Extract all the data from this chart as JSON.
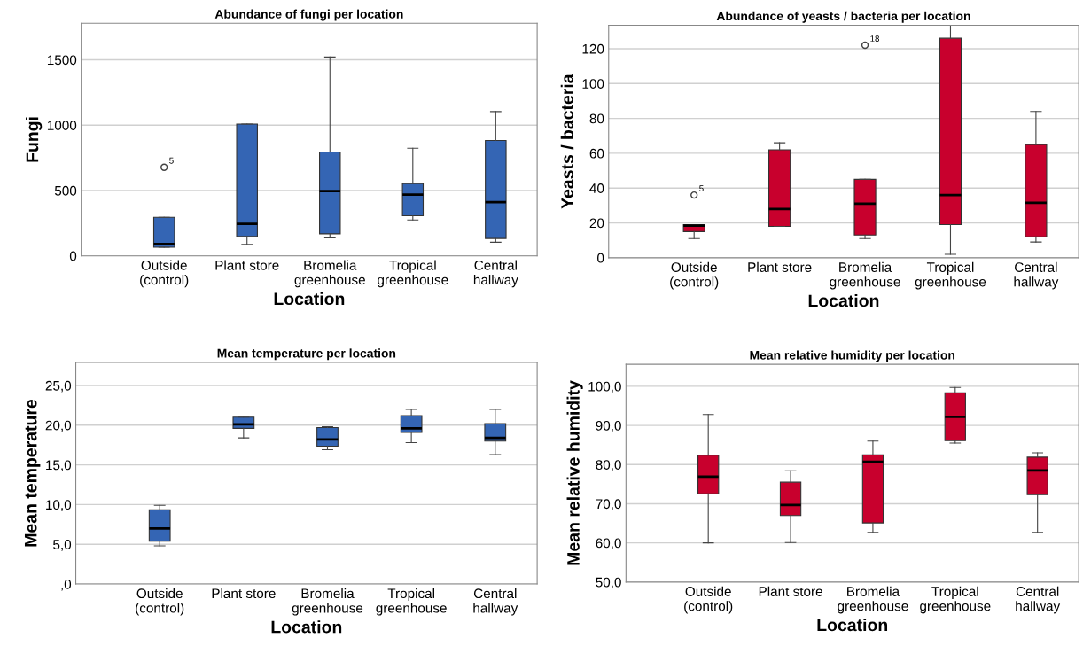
{
  "chart_data": [
    {
      "type": "box",
      "title": "Abundance of fungi per location",
      "xlabel": "Location",
      "ylabel": "Fungi",
      "categories": [
        "Outside\n(control)",
        "Plant store",
        "Bromelia\ngreenhouse",
        "Tropical\ngreenhouse",
        "Central\nhallway"
      ],
      "ylim": [
        0,
        1780
      ],
      "yticks": [
        0,
        500,
        1000,
        1500
      ],
      "grid": "y",
      "series": [
        {
          "color": "#3465b4",
          "boxes": [
            {
              "low": 66,
              "q1": 66,
              "median": 90,
              "q3": 295,
              "high": 295,
              "outliers": [
                678
              ]
            },
            {
              "low": 88,
              "q1": 149,
              "median": 245,
              "q3": 1008,
              "high": 1008
            },
            {
              "low": 138,
              "q1": 168,
              "median": 495,
              "q3": 795,
              "high": 1521
            },
            {
              "low": 274,
              "q1": 306,
              "median": 468,
              "q3": 553,
              "high": 824
            },
            {
              "low": 104,
              "q1": 133,
              "median": 410,
              "q3": 883,
              "high": 1104
            }
          ]
        }
      ],
      "annotations": [
        "5"
      ]
    },
    {
      "type": "box",
      "title": "Abundance of yeasts / bacteria per location",
      "xlabel": "Location",
      "ylabel": "Yeasts / bacteria",
      "categories": [
        "Outside\n(control)",
        "Plant store",
        "Bromelia\ngreenhouse",
        "Tropical\ngreenhouse",
        "Central\nhallway"
      ],
      "ylim": [
        0,
        133.5
      ],
      "yticks": [
        0,
        20,
        40,
        60,
        80,
        100,
        120
      ],
      "grid": "y",
      "series": [
        {
          "color": "#c8002d",
          "boxes": [
            {
              "low": 11,
              "q1": 15,
              "median": 18.4,
              "q3": 19,
              "high": 19,
              "outliers": [
                36
              ]
            },
            {
              "low": 18,
              "q1": 18,
              "median": 28,
              "q3": 62,
              "high": 66
            },
            {
              "low": 11,
              "q1": 13,
              "median": 31,
              "q3": 45,
              "high": 45,
              "outliers": [
                122
              ]
            },
            {
              "low": 2,
              "q1": 19,
              "median": 36,
              "q3": 126,
              "high": 133.5
            },
            {
              "low": 9,
              "q1": 12,
              "median": 31.5,
              "q3": 65,
              "high": 84
            }
          ]
        }
      ],
      "annotations": [
        "5",
        "18"
      ]
    },
    {
      "type": "box",
      "title": "Mean temperature per location",
      "xlabel": "Location",
      "ylabel": "Mean temperature",
      "categories": [
        "Outside\n(control)",
        "Plant store",
        "Bromelia\ngreenhouse",
        "Tropical\ngreenhouse",
        "Central\nhallway"
      ],
      "ylim": [
        0,
        27.9
      ],
      "yticks": [
        {
          "value": 0,
          "label": ",0"
        },
        {
          "value": 5,
          "label": "5,0"
        },
        {
          "value": 10,
          "label": "10,0"
        },
        {
          "value": 15,
          "label": "15,0"
        },
        {
          "value": 20,
          "label": "20,0"
        },
        {
          "value": 25,
          "label": "25,0"
        }
      ],
      "grid": "y",
      "series": [
        {
          "color": "#3465b4",
          "boxes": [
            {
              "low": 4.8,
              "q1": 5.4,
              "median": 7.0,
              "q3": 9.35,
              "high": 9.9
            },
            {
              "low": 18.4,
              "q1": 19.6,
              "median": 20.1,
              "q3": 21.0,
              "high": 21.0
            },
            {
              "low": 16.9,
              "q1": 17.35,
              "median": 18.2,
              "q3": 19.7,
              "high": 19.8
            },
            {
              "low": 17.8,
              "q1": 19.1,
              "median": 19.6,
              "q3": 21.2,
              "high": 22.0
            },
            {
              "low": 16.3,
              "q1": 18.0,
              "median": 18.4,
              "q3": 20.2,
              "high": 22.0
            }
          ]
        }
      ]
    },
    {
      "type": "box",
      "title": "Mean relative humidity per location",
      "xlabel": "Location",
      "ylabel": "Mean relative humidity",
      "categories": [
        "Outside\n(control)",
        "Plant store",
        "Bromelia\ngreenhouse",
        "Tropical\ngreenhouse",
        "Central\nhallway"
      ],
      "ylim": [
        50,
        105.6
      ],
      "yticks": [
        {
          "value": 50,
          "label": "50,0"
        },
        {
          "value": 60,
          "label": "60,0"
        },
        {
          "value": 70,
          "label": "70,0"
        },
        {
          "value": 80,
          "label": "80,0"
        },
        {
          "value": 90,
          "label": "90,0"
        },
        {
          "value": 100,
          "label": "100,0"
        }
      ],
      "grid": "y",
      "series": [
        {
          "color": "#c8002d",
          "boxes": [
            {
              "low": 60,
              "q1": 72.5,
              "median": 76.9,
              "q3": 82.4,
              "high": 92.8
            },
            {
              "low": 60.1,
              "q1": 67.0,
              "median": 69.7,
              "q3": 75.5,
              "high": 78.4
            },
            {
              "low": 62.7,
              "q1": 65.1,
              "median": 80.7,
              "q3": 82.5,
              "high": 86
            },
            {
              "low": 85.5,
              "q1": 86.1,
              "median": 92.2,
              "q3": 98.3,
              "high": 99.7
            },
            {
              "low": 62.7,
              "q1": 72.3,
              "median": 78.5,
              "q3": 81.9,
              "high": 83.0
            }
          ]
        }
      ]
    }
  ]
}
